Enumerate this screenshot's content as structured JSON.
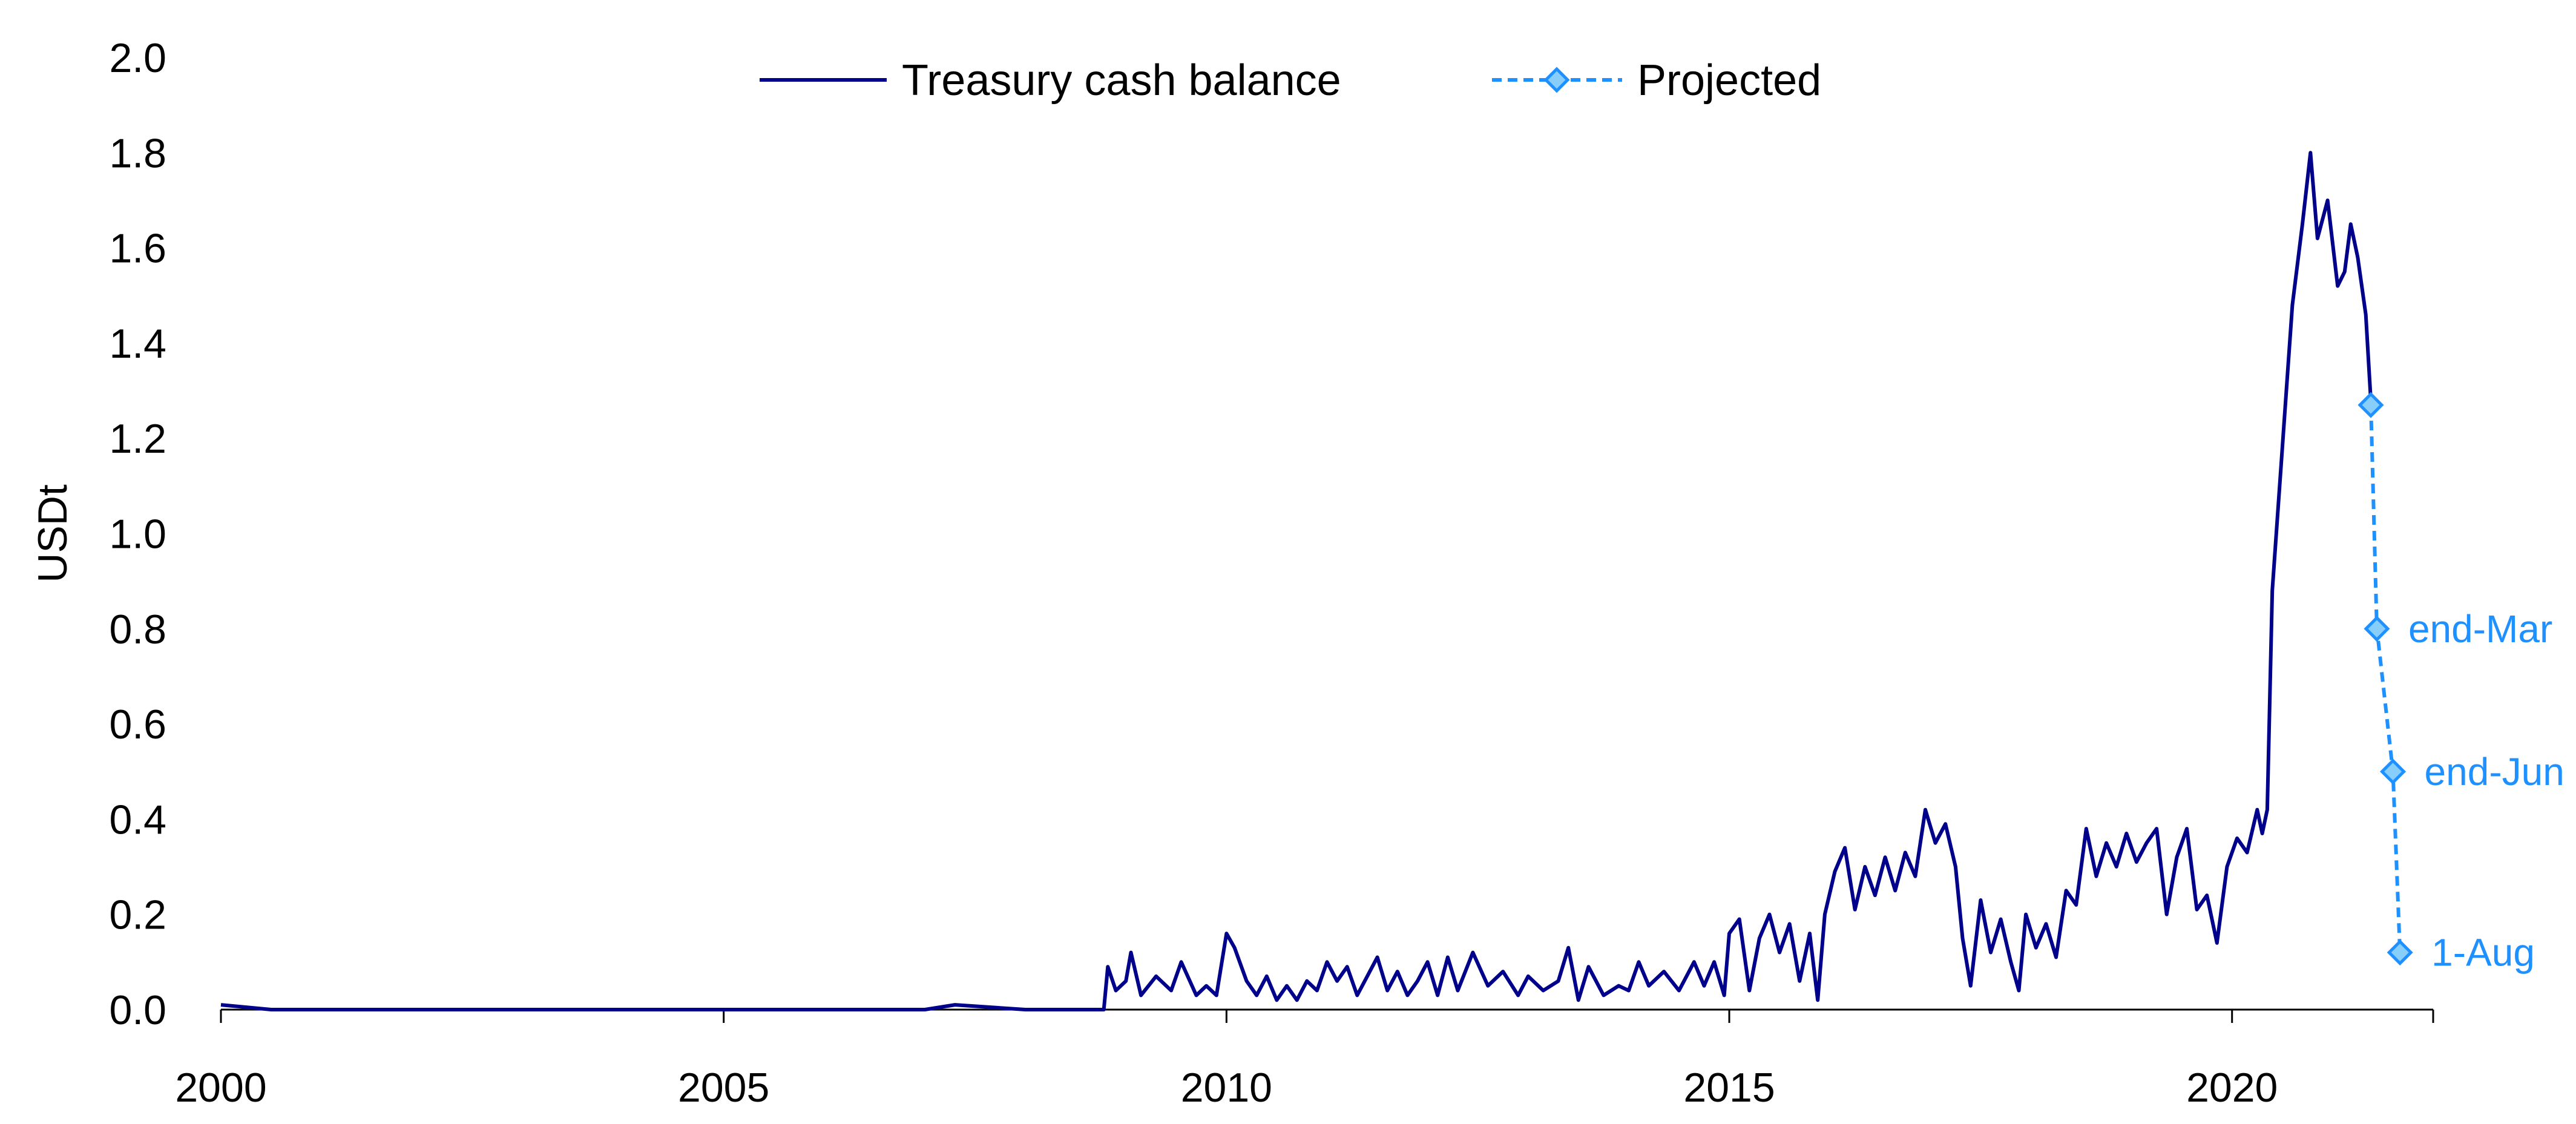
{
  "chart_data": {
    "type": "line",
    "title": "",
    "xlabel": "",
    "ylabel": "USDt",
    "xlim": [
      2000,
      2022
    ],
    "ylim": [
      0,
      2.0
    ],
    "x_ticks": [
      "2000",
      "2005",
      "2010",
      "2015",
      "2020"
    ],
    "y_ticks": [
      "0.0",
      "0.2",
      "0.4",
      "0.6",
      "0.8",
      "1.0",
      "1.2",
      "1.4",
      "1.6",
      "1.8",
      "2.0"
    ],
    "grid": false,
    "legend_position": "top-center",
    "series": [
      {
        "name": "Treasury cash balance",
        "color": "#00008B",
        "style": "solid",
        "points": [
          [
            2000.0,
            0.01
          ],
          [
            2000.5,
            0.0
          ],
          [
            2001.0,
            0.0
          ],
          [
            2002.0,
            0.0
          ],
          [
            2003.0,
            0.0
          ],
          [
            2004.0,
            0.0
          ],
          [
            2005.0,
            0.0
          ],
          [
            2006.0,
            0.0
          ],
          [
            2007.0,
            0.0
          ],
          [
            2007.3,
            0.01
          ],
          [
            2008.0,
            0.0
          ],
          [
            2008.78,
            0.0
          ],
          [
            2008.82,
            0.09
          ],
          [
            2008.9,
            0.04
          ],
          [
            2009.0,
            0.06
          ],
          [
            2009.05,
            0.12
          ],
          [
            2009.15,
            0.03
          ],
          [
            2009.3,
            0.07
          ],
          [
            2009.45,
            0.04
          ],
          [
            2009.55,
            0.1
          ],
          [
            2009.7,
            0.03
          ],
          [
            2009.8,
            0.05
          ],
          [
            2009.9,
            0.03
          ],
          [
            2010.0,
            0.16
          ],
          [
            2010.08,
            0.13
          ],
          [
            2010.2,
            0.06
          ],
          [
            2010.3,
            0.03
          ],
          [
            2010.4,
            0.07
          ],
          [
            2010.5,
            0.02
          ],
          [
            2010.6,
            0.05
          ],
          [
            2010.7,
            0.02
          ],
          [
            2010.8,
            0.06
          ],
          [
            2010.9,
            0.04
          ],
          [
            2011.0,
            0.1
          ],
          [
            2011.1,
            0.06
          ],
          [
            2011.2,
            0.09
          ],
          [
            2011.3,
            0.03
          ],
          [
            2011.4,
            0.07
          ],
          [
            2011.5,
            0.11
          ],
          [
            2011.6,
            0.04
          ],
          [
            2011.7,
            0.08
          ],
          [
            2011.8,
            0.03
          ],
          [
            2011.9,
            0.06
          ],
          [
            2012.0,
            0.1
          ],
          [
            2012.1,
            0.03
          ],
          [
            2012.2,
            0.11
          ],
          [
            2012.3,
            0.04
          ],
          [
            2012.45,
            0.12
          ],
          [
            2012.6,
            0.05
          ],
          [
            2012.75,
            0.08
          ],
          [
            2012.9,
            0.03
          ],
          [
            2013.0,
            0.07
          ],
          [
            2013.15,
            0.04
          ],
          [
            2013.3,
            0.06
          ],
          [
            2013.4,
            0.13
          ],
          [
            2013.5,
            0.02
          ],
          [
            2013.6,
            0.09
          ],
          [
            2013.75,
            0.03
          ],
          [
            2013.9,
            0.05
          ],
          [
            2014.0,
            0.04
          ],
          [
            2014.1,
            0.1
          ],
          [
            2014.2,
            0.05
          ],
          [
            2014.35,
            0.08
          ],
          [
            2014.5,
            0.04
          ],
          [
            2014.65,
            0.1
          ],
          [
            2014.75,
            0.05
          ],
          [
            2014.85,
            0.1
          ],
          [
            2014.95,
            0.03
          ],
          [
            2015.0,
            0.16
          ],
          [
            2015.1,
            0.19
          ],
          [
            2015.2,
            0.04
          ],
          [
            2015.3,
            0.15
          ],
          [
            2015.4,
            0.2
          ],
          [
            2015.5,
            0.12
          ],
          [
            2015.6,
            0.18
          ],
          [
            2015.7,
            0.06
          ],
          [
            2015.8,
            0.16
          ],
          [
            2015.88,
            0.02
          ],
          [
            2015.95,
            0.2
          ],
          [
            2016.05,
            0.29
          ],
          [
            2016.15,
            0.34
          ],
          [
            2016.25,
            0.21
          ],
          [
            2016.35,
            0.3
          ],
          [
            2016.45,
            0.24
          ],
          [
            2016.55,
            0.32
          ],
          [
            2016.65,
            0.25
          ],
          [
            2016.75,
            0.33
          ],
          [
            2016.85,
            0.28
          ],
          [
            2016.95,
            0.42
          ],
          [
            2017.05,
            0.35
          ],
          [
            2017.15,
            0.39
          ],
          [
            2017.25,
            0.3
          ],
          [
            2017.32,
            0.15
          ],
          [
            2017.4,
            0.05
          ],
          [
            2017.5,
            0.23
          ],
          [
            2017.6,
            0.12
          ],
          [
            2017.7,
            0.19
          ],
          [
            2017.8,
            0.1
          ],
          [
            2017.88,
            0.04
          ],
          [
            2017.95,
            0.2
          ],
          [
            2018.05,
            0.13
          ],
          [
            2018.15,
            0.18
          ],
          [
            2018.25,
            0.11
          ],
          [
            2018.35,
            0.25
          ],
          [
            2018.45,
            0.22
          ],
          [
            2018.55,
            0.38
          ],
          [
            2018.65,
            0.28
          ],
          [
            2018.75,
            0.35
          ],
          [
            2018.85,
            0.3
          ],
          [
            2018.95,
            0.37
          ],
          [
            2019.05,
            0.31
          ],
          [
            2019.15,
            0.35
          ],
          [
            2019.25,
            0.38
          ],
          [
            2019.35,
            0.2
          ],
          [
            2019.45,
            0.32
          ],
          [
            2019.55,
            0.38
          ],
          [
            2019.65,
            0.21
          ],
          [
            2019.75,
            0.24
          ],
          [
            2019.85,
            0.14
          ],
          [
            2019.95,
            0.3
          ],
          [
            2020.05,
            0.36
          ],
          [
            2020.15,
            0.33
          ],
          [
            2020.25,
            0.42
          ],
          [
            2020.3,
            0.37
          ],
          [
            2020.35,
            0.42
          ],
          [
            2020.4,
            0.88
          ],
          [
            2020.5,
            1.18
          ],
          [
            2020.6,
            1.48
          ],
          [
            2020.7,
            1.65
          ],
          [
            2020.78,
            1.8
          ],
          [
            2020.85,
            1.62
          ],
          [
            2020.95,
            1.7
          ],
          [
            2021.05,
            1.52
          ],
          [
            2021.12,
            1.55
          ],
          [
            2021.18,
            1.65
          ],
          [
            2021.25,
            1.58
          ],
          [
            2021.33,
            1.46
          ],
          [
            2021.38,
            1.28
          ]
        ]
      },
      {
        "name": "Projected",
        "color": "#1E90FF",
        "style": "dashed",
        "marker": "diamond",
        "points": [
          [
            2021.38,
            1.27
          ],
          [
            2021.44,
            0.8
          ],
          [
            2021.6,
            0.5
          ],
          [
            2021.67,
            0.12
          ]
        ],
        "labels": [
          "",
          "end-Mar",
          "end-Jun",
          "1-Aug"
        ]
      }
    ]
  }
}
